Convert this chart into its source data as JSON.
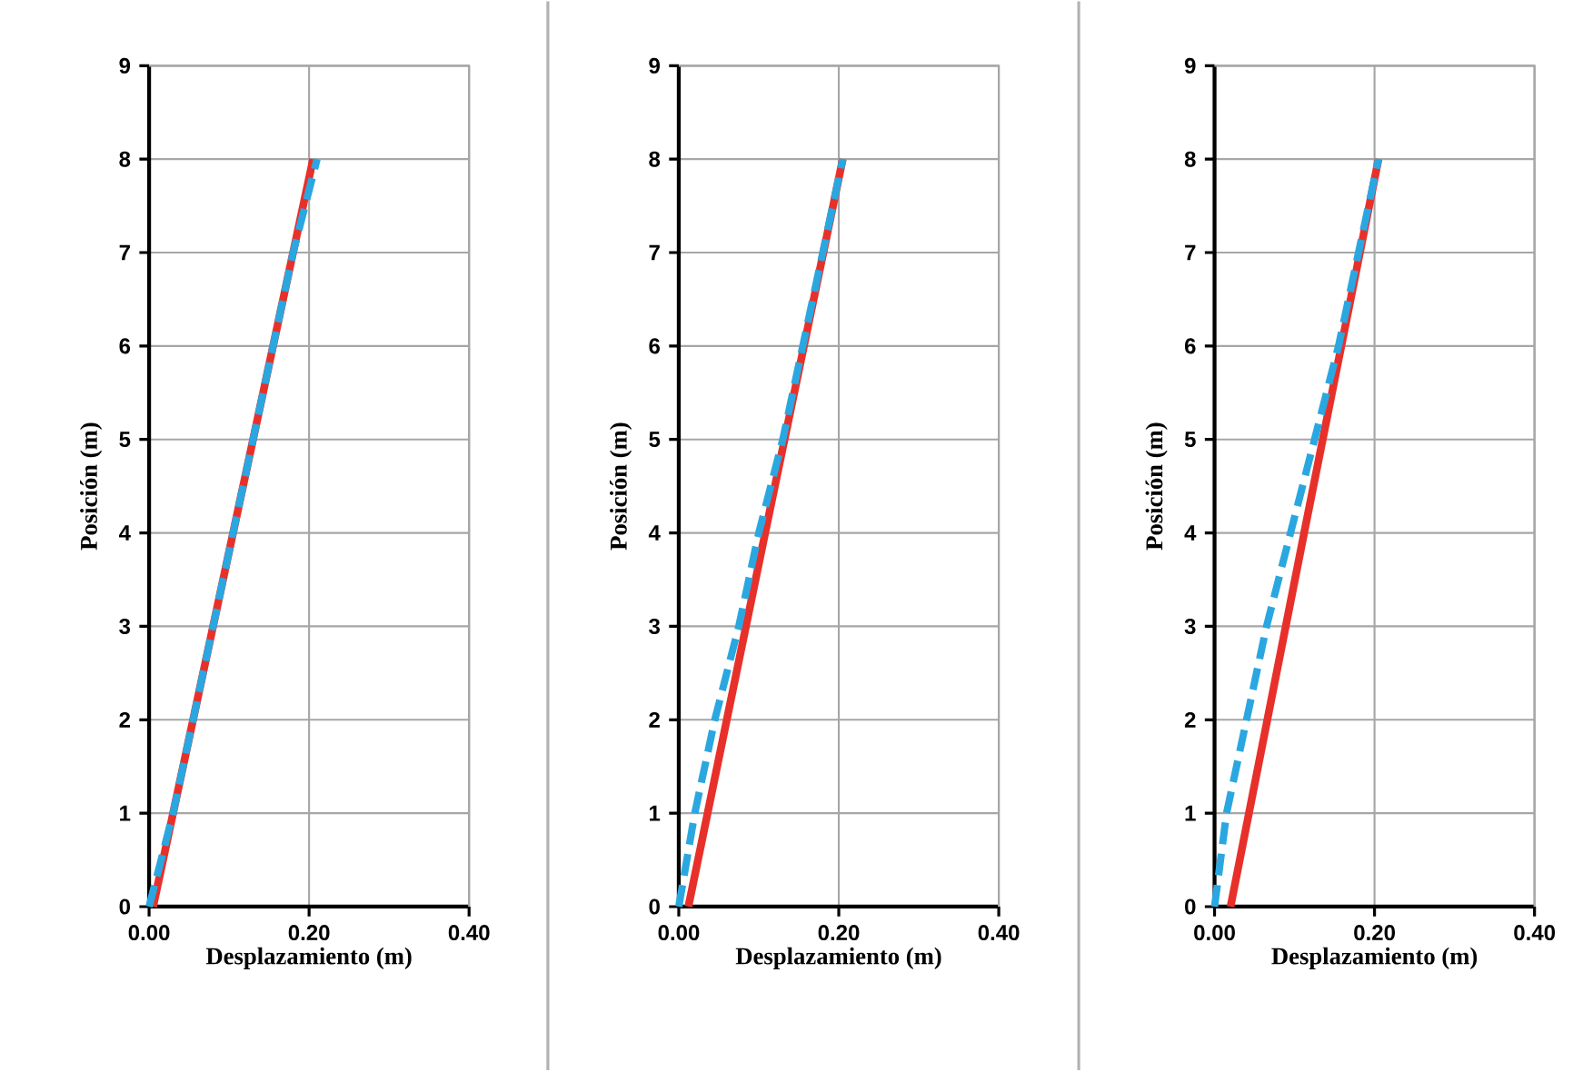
{
  "chart_data": [
    {
      "type": "line",
      "xlabel": "Desplazamiento (m)",
      "ylabel": "Posición (m)",
      "xlim": [
        0,
        0.4
      ],
      "xticks": [
        {
          "value": 0,
          "label": "0.00"
        },
        {
          "value": 0.2,
          "label": "0.20"
        },
        {
          "value": 0.4,
          "label": "0.40"
        }
      ],
      "ylim": [
        0,
        9
      ],
      "yticks": [
        0,
        1,
        2,
        3,
        4,
        5,
        6,
        7,
        8,
        9
      ],
      "grid": true,
      "series": [
        {
          "color": "#e8302a",
          "line_style": "solid",
          "x": [
            0.005,
            0.105,
            0.205
          ],
          "values": [
            0,
            4,
            8
          ]
        },
        {
          "color": "#2aa7e0",
          "line_style": "dashed",
          "x": [
            0,
            0.03,
            0.055,
            0.08,
            0.105,
            0.13,
            0.155,
            0.18,
            0.21
          ],
          "values": [
            0,
            1,
            2,
            3,
            4,
            5,
            6,
            7,
            8
          ]
        }
      ]
    },
    {
      "type": "line",
      "xlabel": "Desplazamiento (m)",
      "ylabel": "Posición (m)",
      "xlim": [
        0,
        0.4
      ],
      "xticks": [
        {
          "value": 0,
          "label": "0.00"
        },
        {
          "value": 0.2,
          "label": "0.20"
        },
        {
          "value": 0.4,
          "label": "0.40"
        }
      ],
      "ylim": [
        0,
        9
      ],
      "yticks": [
        0,
        1,
        2,
        3,
        4,
        5,
        6,
        7,
        8,
        9
      ],
      "grid": true,
      "series": [
        {
          "color": "#e8302a",
          "line_style": "solid",
          "x": [
            0.012,
            0.108,
            0.205
          ],
          "values": [
            0,
            4,
            8
          ]
        },
        {
          "color": "#2aa7e0",
          "line_style": "dashed",
          "x": [
            0,
            0.02,
            0.045,
            0.075,
            0.1,
            0.13,
            0.155,
            0.18,
            0.205
          ],
          "values": [
            0,
            1,
            2,
            3,
            4,
            5,
            6,
            7,
            8
          ]
        }
      ]
    },
    {
      "type": "line",
      "xlabel": "Desplazamiento (m)",
      "ylabel": "Posición (m)",
      "xlim": [
        0,
        0.4
      ],
      "xticks": [
        {
          "value": 0,
          "label": "0.00"
        },
        {
          "value": 0.2,
          "label": "0.20"
        },
        {
          "value": 0.4,
          "label": "0.40"
        }
      ],
      "ylim": [
        0,
        9
      ],
      "yticks": [
        0,
        1,
        2,
        3,
        4,
        5,
        6,
        7,
        8,
        9
      ],
      "grid": true,
      "series": [
        {
          "color": "#e8302a",
          "line_style": "solid",
          "x": [
            0.02,
            0.112,
            0.205
          ],
          "values": [
            0,
            4,
            8
          ]
        },
        {
          "color": "#2aa7e0",
          "line_style": "dashed",
          "x": [
            0,
            0.015,
            0.04,
            0.065,
            0.095,
            0.125,
            0.155,
            0.18,
            0.205
          ],
          "values": [
            0,
            1,
            2,
            3,
            4,
            5,
            6,
            7,
            8
          ]
        }
      ]
    }
  ]
}
